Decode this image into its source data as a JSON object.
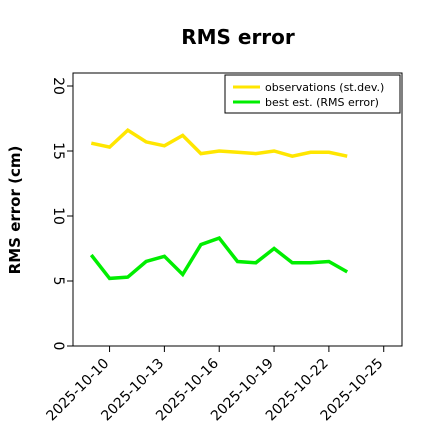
{
  "chart_data": {
    "type": "line",
    "title": "RMS error",
    "xlabel": "",
    "ylabel": "RMS error (cm)",
    "ylim": [
      0,
      21
    ],
    "xlim": [
      "2025-10-08",
      "2025-10-26"
    ],
    "x": [
      "2025-10-09",
      "2025-10-10",
      "2025-10-11",
      "2025-10-12",
      "2025-10-13",
      "2025-10-14",
      "2025-10-15",
      "2025-10-16",
      "2025-10-17",
      "2025-10-18",
      "2025-10-19",
      "2025-10-20",
      "2025-10-21",
      "2025-10-22",
      "2025-10-23"
    ],
    "series": [
      {
        "name": "observations (st.dev.)",
        "color": "#ffe600",
        "values": [
          15.6,
          15.3,
          16.6,
          15.7,
          15.4,
          16.2,
          14.8,
          15.0,
          14.9,
          14.8,
          15.0,
          14.6,
          14.9,
          14.9,
          14.6
        ]
      },
      {
        "name": "best est. (RMS error)",
        "color": "#00ee00",
        "values": [
          7.0,
          5.2,
          5.3,
          6.5,
          6.9,
          5.5,
          7.8,
          8.3,
          6.5,
          6.4,
          7.5,
          6.4,
          6.4,
          6.5,
          5.7
        ]
      }
    ],
    "yticks": [
      0,
      5,
      10,
      15,
      20
    ],
    "ytick_labels": [
      "0",
      "5",
      "10",
      "15",
      "20"
    ],
    "xticks": [
      "2025-10-10",
      "2025-10-13",
      "2025-10-16",
      "2025-10-19",
      "2025-10-22",
      "2025-10-25"
    ],
    "xtick_labels": [
      "2025-10-10",
      "2025-10-13",
      "2025-10-16",
      "2025-10-19",
      "2025-10-22",
      "2025-10-25"
    ],
    "highlight_tick": "2025-10-16",
    "highlight_color": "#2e8b2e",
    "grid": false,
    "legend_position": "top-right"
  }
}
